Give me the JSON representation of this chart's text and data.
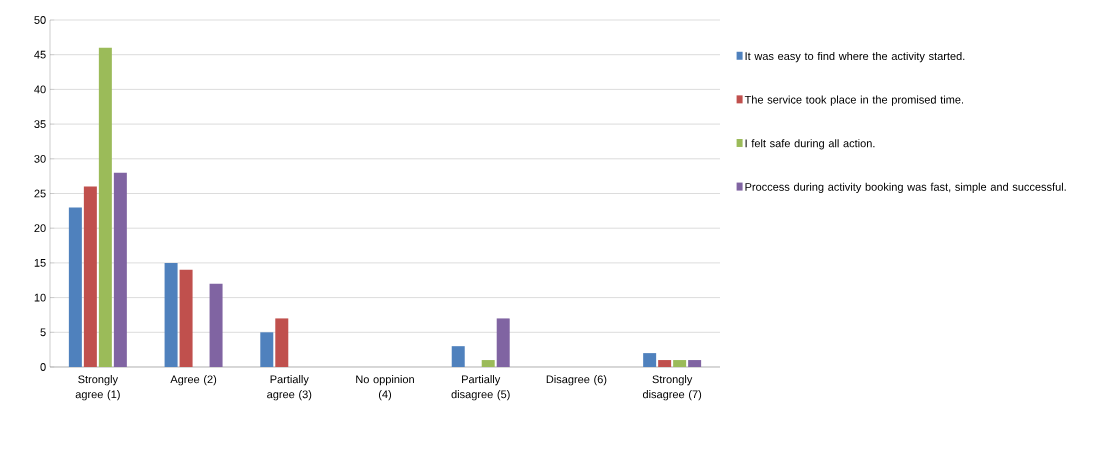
{
  "chart_data": {
    "type": "bar",
    "categories": [
      "Strongly agree (1)",
      "Agree (2)",
      "Partially agree (3)",
      "No oppinion (4)",
      "Partially disagree (5)",
      "Disagree (6)",
      "Strongly disagree (7)"
    ],
    "series": [
      {
        "name": "It was easy to find where the activity started.",
        "color": "#4f81bd",
        "values": [
          23,
          15,
          5,
          0,
          3,
          0,
          2
        ]
      },
      {
        "name": "The service took place in the promised time.",
        "color": "#c0504d",
        "values": [
          26,
          14,
          7,
          0,
          0,
          0,
          1
        ]
      },
      {
        "name": "I felt safe during all action.",
        "color": "#9bbb59",
        "values": [
          46,
          0,
          0,
          0,
          1,
          0,
          1
        ]
      },
      {
        "name": "Proccess during activity booking was fast, simple and successful.",
        "color": "#8064a2",
        "values": [
          28,
          12,
          0,
          0,
          7,
          0,
          1
        ]
      }
    ],
    "ylim": [
      0,
      50
    ],
    "yticks": [
      0,
      5,
      10,
      15,
      20,
      25,
      30,
      35,
      40,
      45,
      50
    ],
    "grid": "y",
    "legend": "right"
  }
}
